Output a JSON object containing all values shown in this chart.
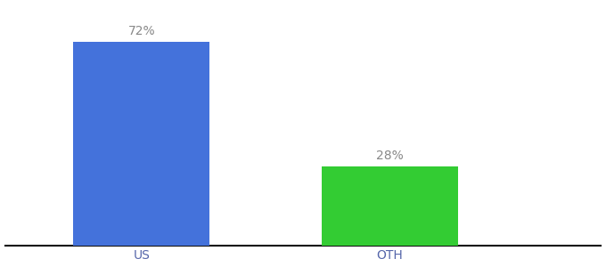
{
  "categories": [
    "US",
    "OTH"
  ],
  "values": [
    72,
    28
  ],
  "bar_colors": [
    "#4472db",
    "#33cc33"
  ],
  "label_format": "{}%",
  "label_color": "#888888",
  "label_fontsize": 10,
  "tick_fontsize": 10,
  "tick_color": "#5566aa",
  "background_color": "#ffffff",
  "ylim": [
    0,
    85
  ],
  "bar_width": 0.55,
  "x_positions": [
    1,
    2
  ],
  "xlim": [
    0.45,
    2.85
  ],
  "axis_line_color": "#111111"
}
